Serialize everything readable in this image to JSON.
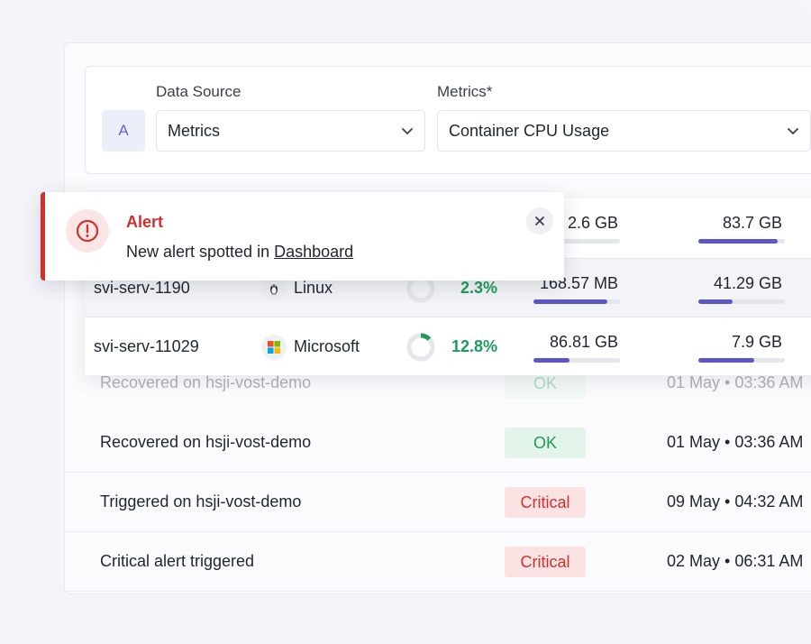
{
  "query": {
    "letter": "A",
    "data_source_label": "Data Source",
    "data_source_value": "Metrics",
    "metrics_label": "Metrics*",
    "metrics_value": "Container CPU Usage"
  },
  "servers": [
    {
      "name": "",
      "os": "",
      "cpu": "",
      "mem": "2.6 GB",
      "mem_fill": 0.12,
      "disk": "83.7 GB",
      "disk_fill": 0.92
    },
    {
      "name": "svi-serv-1190",
      "os": "Linux",
      "cpu": "2.3%",
      "cpu_fill": 0.023,
      "mem": "168.57 MB",
      "mem_fill": 0.85,
      "disk": "41.29 GB",
      "disk_fill": 0.4
    },
    {
      "name": "svi-serv-11029",
      "os": "Microsoft",
      "cpu": "12.8%",
      "cpu_fill": 0.128,
      "mem": "86.81 GB",
      "mem_fill": 0.42,
      "disk": "7.9 GB",
      "disk_fill": 0.65
    }
  ],
  "alert": {
    "title": "Alert",
    "message": "New alert spotted in",
    "link": "Dashboard"
  },
  "events": [
    {
      "text": "Recovered on hsji-vost-demo",
      "status": "OK",
      "time": "01 May • 03:36 AM"
    },
    {
      "text": "Recovered on hsji-vost-demo",
      "status": "OK",
      "time": "01 May • 03:36 AM"
    },
    {
      "text": "Triggered on hsji-vost-demo",
      "status": "Critical",
      "time": "09 May • 04:32 AM"
    },
    {
      "text": "Critical alert triggered",
      "status": "Critical",
      "time": "02 May • 06:31 AM"
    }
  ],
  "colors": {
    "accent": "#5b58c6",
    "ok": "#1e9b5a",
    "critical": "#d2302f"
  }
}
